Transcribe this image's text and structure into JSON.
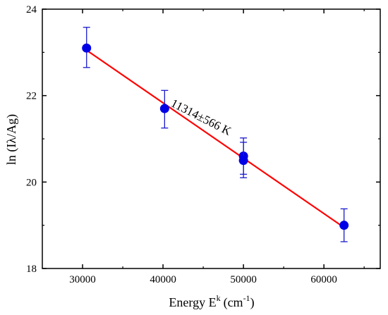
{
  "chart_data": {
    "type": "scatter",
    "xlabel_main": "Energy E",
    "xlabel_sup_k": "k",
    "xlabel_unit_open": "(cm",
    "xlabel_sup_exp": "-1",
    "xlabel_unit_close": ")",
    "ylabel": "ln (Iλ/Ag)",
    "xlim": [
      25000,
      67000
    ],
    "ylim": [
      18,
      24
    ],
    "x_ticks": [
      30000,
      40000,
      50000,
      60000
    ],
    "y_ticks": [
      18,
      20,
      22,
      24
    ],
    "x_tick_labels": [
      "30000",
      "40000",
      "50000",
      "60000"
    ],
    "y_tick_labels": [
      "18",
      "20",
      "22",
      "24"
    ],
    "grid": false,
    "points": [
      {
        "x": 30500,
        "y": 23.1,
        "err_low": 22.65,
        "err_high": 23.58
      },
      {
        "x": 40200,
        "y": 21.7,
        "err_low": 21.25,
        "err_high": 22.12
      },
      {
        "x": 50000,
        "y": 20.6,
        "err_low": 20.18,
        "err_high": 21.02
      },
      {
        "x": 50000,
        "y": 20.5,
        "err_low": 20.1,
        "err_high": 20.92
      },
      {
        "x": 62500,
        "y": 19.0,
        "err_low": 18.62,
        "err_high": 19.38
      }
    ],
    "fit_line": {
      "x": [
        30500,
        62500
      ],
      "y": [
        23.05,
        18.95
      ],
      "annotation": "11314±566 K"
    },
    "colors": {
      "points": "#0000e6",
      "error_bars": "#1a1acc",
      "fit_line": "#ff0000",
      "axes": "#000000"
    }
  }
}
